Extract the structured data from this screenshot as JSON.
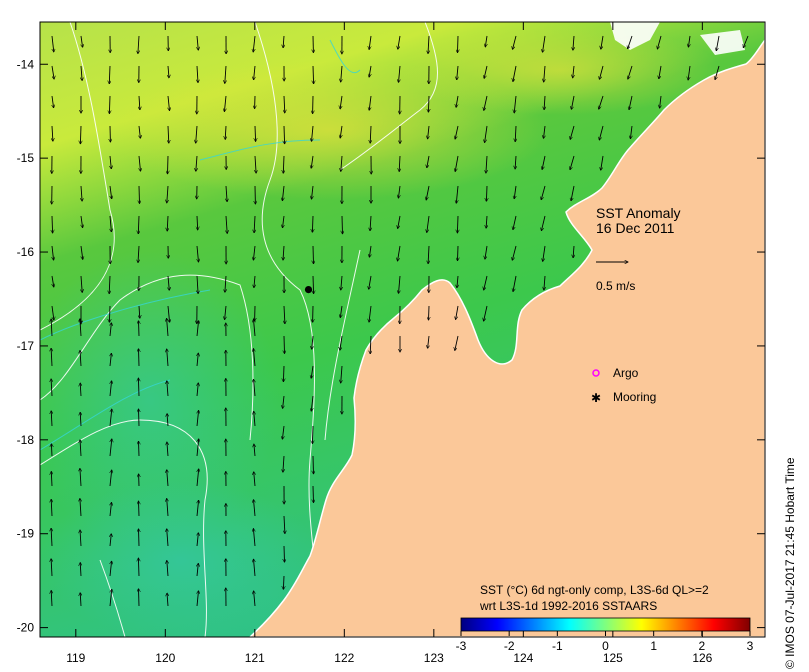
{
  "title": {
    "line1": "SST Anomaly",
    "line2": "16 Dec 2011"
  },
  "scale_arrow": {
    "label": "0.5 m/s",
    "speed_ms": 0.5
  },
  "legend": {
    "items": [
      {
        "label": "Argo",
        "marker": "open-circle",
        "color": "#ff00ff"
      },
      {
        "label": "Mooring",
        "marker": "filled-circle",
        "color": "#000000"
      }
    ]
  },
  "colorbar": {
    "line1": "SST (°C) 6d ngt-only comp, L3S-6d QL>=2",
    "line2": "wrt L3S-1d 1992-2016 SSTAARS",
    "ticks": [
      "-3",
      "-2",
      "-1",
      "0",
      "1",
      "2",
      "3"
    ],
    "min": -3,
    "max": 3,
    "colors": [
      "#00007f",
      "#0000ff",
      "#007fff",
      "#00ffff",
      "#7fff7f",
      "#ffff00",
      "#ff7f00",
      "#ff0000",
      "#7f0000"
    ]
  },
  "axes": {
    "x_ticks": [
      "119",
      "120",
      "121",
      "122",
      "123",
      "124",
      "125",
      "126"
    ],
    "y_ticks": [
      "-14",
      "-15",
      "-16",
      "-17",
      "-18",
      "-19",
      "-20"
    ],
    "lon_range": [
      118.6,
      126.7
    ],
    "lat_range": [
      -20.1,
      -13.55
    ]
  },
  "mooring": {
    "lon": 121.6,
    "lat": -16.4
  },
  "credit": "© IMOS 07-Jul-2017 21:45 Hobart Time",
  "colors": {
    "land": "#fbc899",
    "coast": "#ffffff",
    "contour": "#ffffff",
    "anomaly_near_zero": "#3ecc3e",
    "anomaly_warm": "#c8e83a",
    "anomaly_cool": "#3ecfa0"
  }
}
